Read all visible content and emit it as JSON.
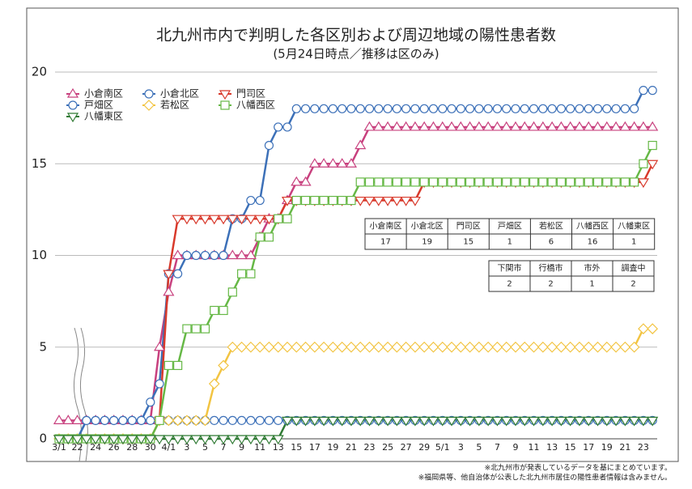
{
  "chart_data": {
    "type": "line",
    "title": "北九州市内で判明した各区別および周辺地域の陽性患者数",
    "subtitle": "(5月24日時点／推移は区のみ)",
    "categories": [
      "3/1",
      null,
      "22",
      null,
      "24",
      null,
      "26",
      null,
      "28",
      null,
      "30",
      null,
      "4/1",
      null,
      "3",
      null,
      "5",
      null,
      "7",
      null,
      "9",
      null,
      "11",
      null,
      "13",
      null,
      "15",
      null,
      "17",
      null,
      "19",
      null,
      "21",
      null,
      "23",
      null,
      "25",
      null,
      "27",
      null,
      "29",
      null,
      "5/1",
      null,
      "3",
      null,
      "5",
      null,
      "7",
      null,
      "9",
      null,
      "11",
      null,
      "13",
      null,
      "15",
      null,
      "17",
      null,
      "19",
      null,
      "21",
      null,
      "23",
      null
    ],
    "ylim": [
      0,
      20
    ],
    "yticks": [
      0,
      5,
      10,
      15,
      20
    ],
    "grid": true,
    "legend_position": "top-left",
    "series": [
      {
        "name": "小倉南区",
        "color": "#c8407e",
        "marker": "triangle-up",
        "values": [
          1,
          1,
          1,
          1,
          1,
          1,
          1,
          1,
          1,
          1,
          1,
          5,
          8,
          10,
          10,
          10,
          10,
          10,
          10,
          10,
          10,
          10,
          11,
          12,
          12,
          13,
          14,
          14,
          15,
          15,
          15,
          15,
          15,
          16,
          17,
          17,
          17,
          17,
          17,
          17,
          17,
          17,
          17,
          17,
          17,
          17,
          17,
          17,
          17,
          17,
          17,
          17,
          17,
          17,
          17,
          17,
          17,
          17,
          17,
          17,
          17,
          17,
          17,
          17,
          17,
          17
        ]
      },
      {
        "name": "小倉北区",
        "color": "#3c70b8",
        "marker": "circle",
        "values": [
          0,
          0,
          0,
          1,
          1,
          1,
          1,
          1,
          1,
          1,
          2,
          3,
          9,
          9,
          10,
          10,
          10,
          10,
          10,
          12,
          12,
          13,
          13,
          16,
          17,
          17,
          18,
          18,
          18,
          18,
          18,
          18,
          18,
          18,
          18,
          18,
          18,
          18,
          18,
          18,
          18,
          18,
          18,
          18,
          18,
          18,
          18,
          18,
          18,
          18,
          18,
          18,
          18,
          18,
          18,
          18,
          18,
          18,
          18,
          18,
          18,
          18,
          18,
          18,
          19,
          19
        ]
      },
      {
        "name": "門司区",
        "color": "#d8392b",
        "marker": "triangle-down",
        "values": [
          0,
          0,
          0,
          0,
          0,
          0,
          0,
          0,
          0,
          0,
          0,
          1,
          9,
          12,
          12,
          12,
          12,
          12,
          12,
          12,
          12,
          12,
          12,
          12,
          12,
          13,
          13,
          13,
          13,
          13,
          13,
          13,
          13,
          13,
          13,
          13,
          13,
          13,
          13,
          13,
          14,
          14,
          14,
          14,
          14,
          14,
          14,
          14,
          14,
          14,
          14,
          14,
          14,
          14,
          14,
          14,
          14,
          14,
          14,
          14,
          14,
          14,
          14,
          14,
          14,
          15
        ]
      },
      {
        "name": "戸畑区",
        "color": "#3c70b8",
        "marker": "circle",
        "values": [
          0,
          0,
          0,
          1,
          1,
          1,
          1,
          1,
          1,
          1,
          1,
          1,
          1,
          1,
          1,
          1,
          1,
          1,
          1,
          1,
          1,
          1,
          1,
          1,
          1,
          1,
          1,
          1,
          1,
          1,
          1,
          1,
          1,
          1,
          1,
          1,
          1,
          1,
          1,
          1,
          1,
          1,
          1,
          1,
          1,
          1,
          1,
          1,
          1,
          1,
          1,
          1,
          1,
          1,
          1,
          1,
          1,
          1,
          1,
          1,
          1,
          1,
          1,
          1,
          1,
          1
        ]
      },
      {
        "name": "若松区",
        "color": "#f2c442",
        "marker": "diamond",
        "values": [
          0,
          0,
          0,
          0,
          0,
          0,
          0,
          0,
          0,
          0,
          0,
          1,
          1,
          1,
          1,
          1,
          1,
          3,
          4,
          5,
          5,
          5,
          5,
          5,
          5,
          5,
          5,
          5,
          5,
          5,
          5,
          5,
          5,
          5,
          5,
          5,
          5,
          5,
          5,
          5,
          5,
          5,
          5,
          5,
          5,
          5,
          5,
          5,
          5,
          5,
          5,
          5,
          5,
          5,
          5,
          5,
          5,
          5,
          5,
          5,
          5,
          5,
          5,
          5,
          6,
          6
        ]
      },
      {
        "name": "八幡西区",
        "color": "#66b846",
        "marker": "square",
        "values": [
          0,
          0,
          0,
          0,
          0,
          0,
          0,
          0,
          0,
          0,
          0,
          1,
          4,
          4,
          6,
          6,
          6,
          7,
          7,
          8,
          9,
          9,
          11,
          11,
          12,
          12,
          13,
          13,
          13,
          13,
          13,
          13,
          13,
          14,
          14,
          14,
          14,
          14,
          14,
          14,
          14,
          14,
          14,
          14,
          14,
          14,
          14,
          14,
          14,
          14,
          14,
          14,
          14,
          14,
          14,
          14,
          14,
          14,
          14,
          14,
          14,
          14,
          14,
          14,
          15,
          16
        ]
      },
      {
        "name": "八幡東区",
        "color": "#2f7a33",
        "marker": "triangle-down",
        "values": [
          0,
          0,
          0,
          0,
          0,
          0,
          0,
          0,
          0,
          0,
          0,
          0,
          0,
          0,
          0,
          0,
          0,
          0,
          0,
          0,
          0,
          0,
          0,
          0,
          0,
          1,
          1,
          1,
          1,
          1,
          1,
          1,
          1,
          1,
          1,
          1,
          1,
          1,
          1,
          1,
          1,
          1,
          1,
          1,
          1,
          1,
          1,
          1,
          1,
          1,
          1,
          1,
          1,
          1,
          1,
          1,
          1,
          1,
          1,
          1,
          1,
          1,
          1,
          1,
          1,
          1
        ]
      }
    ]
  },
  "tables": [
    {
      "header": [
        "小倉南区",
        "小倉北区",
        "門司区",
        "戸畑区",
        "若松区",
        "八幡西区",
        "八幡東区"
      ],
      "row": [
        17,
        19,
        15,
        1,
        6,
        16,
        1
      ]
    },
    {
      "header": [
        "下関市",
        "行橋市",
        "市外",
        "調査中"
      ],
      "row": [
        2,
        2,
        1,
        2
      ]
    }
  ],
  "footnotes": [
    "※北九州市が発表しているデータを基にまとめています。",
    "※福岡県等、他自治体が公表した北九州市居住の陽性患者情報は含みません。"
  ]
}
